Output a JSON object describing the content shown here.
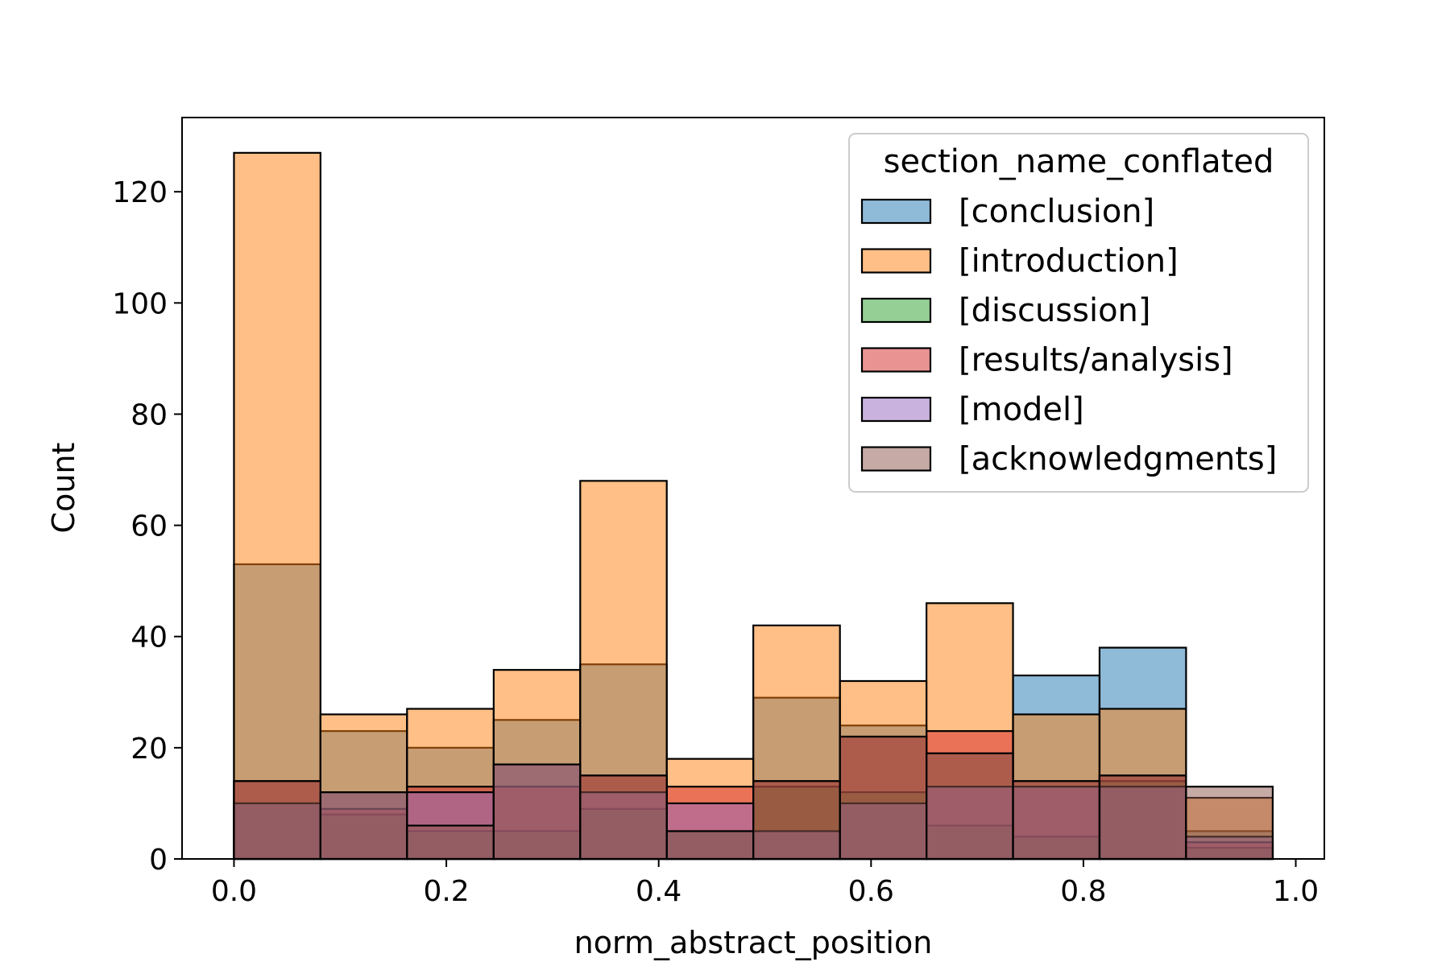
{
  "chart_data": {
    "type": "bar",
    "xlabel": "norm_abstract_position",
    "ylabel": "Count",
    "xlim": [
      -0.0489,
      1.0269
    ],
    "ylim": [
      0,
      133.35
    ],
    "x_ticks": [
      "0.0",
      "0.2",
      "0.4",
      "0.6",
      "0.8",
      "1.0"
    ],
    "y_ticks": [
      "0",
      "20",
      "40",
      "60",
      "80",
      "100",
      "120"
    ],
    "bin_edges": [
      0.0,
      0.0815,
      0.163,
      0.2446,
      0.3261,
      0.4076,
      0.4891,
      0.5707,
      0.6522,
      0.7337,
      0.8152,
      0.8967,
      0.9783
    ],
    "legend": {
      "title": "section_name_conflated",
      "position": "upper right"
    },
    "series": [
      {
        "name": "[conclusion]",
        "color": "#1f77b4",
        "values": [
          53,
          23,
          20,
          25,
          35,
          5,
          29,
          24,
          19,
          33,
          38,
          5
        ]
      },
      {
        "name": "[introduction]",
        "color": "#ff7f0e",
        "values": [
          127,
          26,
          27,
          34,
          68,
          18,
          42,
          32,
          46,
          26,
          27,
          11
        ]
      },
      {
        "name": "[discussion]",
        "color": "#2ca02c",
        "values": [
          10,
          8,
          5,
          5,
          9,
          5,
          13,
          12,
          6,
          4,
          14,
          2
        ]
      },
      {
        "name": "[results/analysis]",
        "color": "#d62728",
        "values": [
          14,
          9,
          13,
          13,
          15,
          13,
          14,
          22,
          23,
          14,
          15,
          3
        ]
      },
      {
        "name": "[model]",
        "color": "#9467bd",
        "values": [
          10,
          12,
          12,
          17,
          12,
          10,
          5,
          10,
          13,
          13,
          13,
          4
        ]
      },
      {
        "name": "[acknowledgments]",
        "color": "#8c564b",
        "values": [
          14,
          12,
          6,
          17,
          15,
          5,
          14,
          22,
          19,
          14,
          15,
          13
        ]
      }
    ]
  }
}
